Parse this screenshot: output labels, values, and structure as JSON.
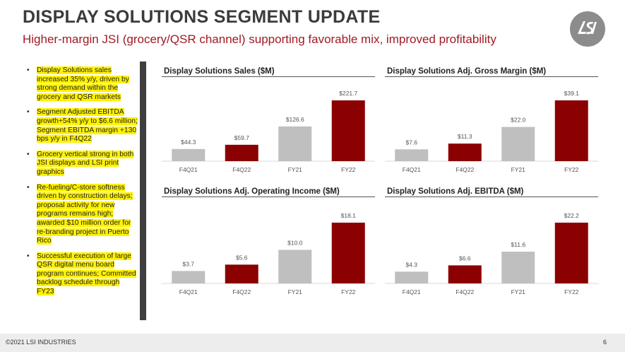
{
  "header": {
    "title": "DISPLAY SOLUTIONS SEGMENT UPDATE",
    "subtitle": "Higher-margin JSI (grocery/QSR channel) supporting favorable mix, improved profitability"
  },
  "sidebar": {
    "bullet_glyph": "•",
    "bullets": [
      "Display Solutions sales increased 35% y/y, driven by strong demand within the grocery and QSR markets",
      "Segment Adjusted EBITDA growth+54% y/y to $6.6 million; Segment EBITDA margin +130 bps y/y in F4Q22",
      "Grocery vertical strong in both JSI displays and LSI print graphics",
      "Re-fueling/C-store softness driven by construction delays; proposal activity for new programs remains high; awarded $10 million order for re-branding project in Puerto Rico",
      "Successful execution of large QSR digital menu board program continues; Committed backlog schedule through FY23"
    ]
  },
  "colors": {
    "gray_bar": "#bfbfbf",
    "red_bar": "#8b0000",
    "accent_red": "#a01a22",
    "highlight": "#fff200"
  },
  "logo": {
    "icon": "lsi-logo-icon"
  },
  "chart_data": [
    {
      "type": "bar",
      "title": "Display Solutions Sales ($M)",
      "categories": [
        "F4Q21",
        "F4Q22",
        "FY21",
        "FY22"
      ],
      "values": [
        44.3,
        59.7,
        126.6,
        221.7
      ],
      "labels": [
        "$44.3",
        "$59.7",
        "$126.6",
        "$221.7"
      ],
      "bar_colors": [
        "gray",
        "red",
        "gray",
        "red"
      ],
      "ylim": [
        0,
        221.7
      ]
    },
    {
      "type": "bar",
      "title": "Display Solutions Adj. Gross Margin ($M)",
      "categories": [
        "F4Q21",
        "F4Q22",
        "FY21",
        "FY22"
      ],
      "values": [
        7.6,
        11.3,
        22.0,
        39.1
      ],
      "labels": [
        "$7.6",
        "$11.3",
        "$22.0",
        "$39.1"
      ],
      "bar_colors": [
        "gray",
        "red",
        "gray",
        "red"
      ],
      "ylim": [
        0,
        39.1
      ]
    },
    {
      "type": "bar",
      "title": "Display Solutions Adj. Operating Income ($M)",
      "categories": [
        "F4Q21",
        "F4Q22",
        "FY21",
        "FY22"
      ],
      "values": [
        3.7,
        5.6,
        10.0,
        18.1
      ],
      "labels": [
        "$3.7",
        "$5.6",
        "$10.0",
        "$18.1"
      ],
      "bar_colors": [
        "gray",
        "red",
        "gray",
        "red"
      ],
      "ylim": [
        0,
        18.1
      ]
    },
    {
      "type": "bar",
      "title": "Display Solutions Adj. EBITDA ($M)",
      "categories": [
        "F4Q21",
        "F4Q22",
        "FY21",
        "FY22"
      ],
      "values": [
        4.3,
        6.6,
        11.6,
        22.2
      ],
      "labels": [
        "$4.3",
        "$6.6",
        "$11.6",
        "$22.2"
      ],
      "bar_colors": [
        "gray",
        "red",
        "gray",
        "red"
      ],
      "ylim": [
        0,
        22.2
      ]
    }
  ],
  "footer": {
    "copyright": "©2021 LSI INDUSTRIES",
    "page_number": "6"
  }
}
